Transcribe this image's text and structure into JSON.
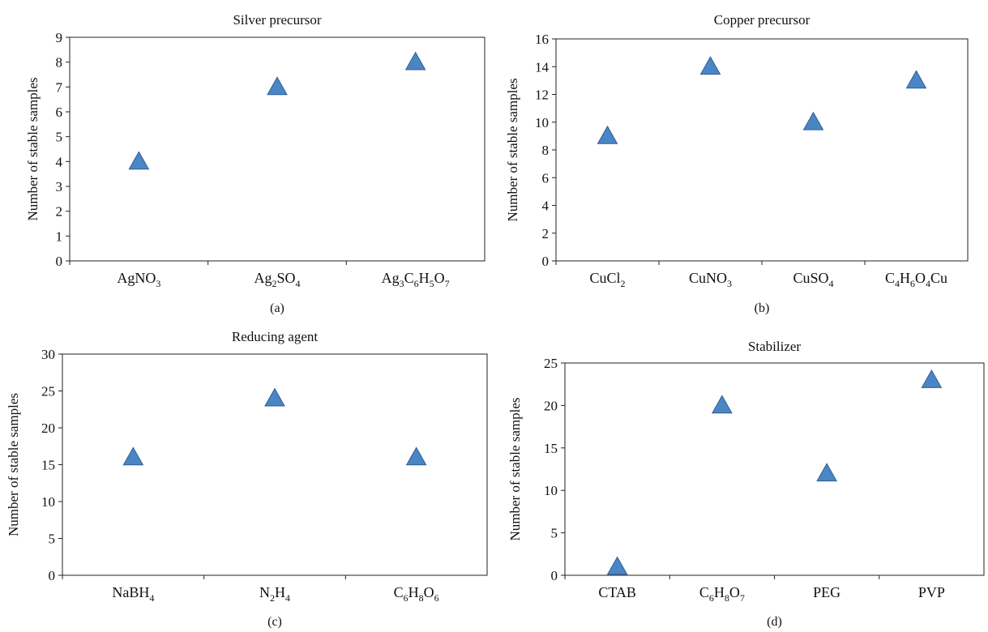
{
  "chart_data": [
    {
      "type": "scatter",
      "title": "Silver precursor",
      "ylabel": "Number of stable samples",
      "xlabel": "",
      "panel_label": "(a)",
      "categories": [
        {
          "base": "AgNO",
          "parts": [
            [
              "AgNO",
              ""
            ],
            [
              "3",
              "sub"
            ]
          ]
        },
        {
          "base": "Ag2SO4",
          "parts": [
            [
              "Ag",
              ""
            ],
            [
              "2",
              "sub"
            ],
            [
              "SO",
              ""
            ],
            [
              "4",
              "sub"
            ]
          ]
        },
        {
          "base": "Ag3C6H5O7",
          "parts": [
            [
              "Ag",
              ""
            ],
            [
              "3",
              "sub"
            ],
            [
              "C",
              ""
            ],
            [
              "6",
              "sub"
            ],
            [
              "H",
              ""
            ],
            [
              "5",
              "sub"
            ],
            [
              "O",
              ""
            ],
            [
              "7",
              "sub"
            ]
          ]
        }
      ],
      "values": [
        4,
        7,
        8
      ],
      "ylim": [
        0,
        9
      ],
      "yticks": [
        0,
        1,
        2,
        3,
        4,
        5,
        6,
        7,
        8,
        9
      ],
      "marker": "triangle",
      "color": "#4a86c5",
      "grid": false
    },
    {
      "type": "scatter",
      "title": "Copper precursor",
      "ylabel": "Number of stable samples",
      "xlabel": "",
      "panel_label": "(b)",
      "categories": [
        {
          "base": "CuCl2",
          "parts": [
            [
              "CuCl",
              ""
            ],
            [
              "2",
              "sub"
            ]
          ]
        },
        {
          "base": "CuNO3",
          "parts": [
            [
              "CuNO",
              ""
            ],
            [
              "3",
              "sub"
            ]
          ]
        },
        {
          "base": "CuSO4",
          "parts": [
            [
              "CuSO",
              ""
            ],
            [
              "4",
              "sub"
            ]
          ]
        },
        {
          "base": "C4H6O4Cu",
          "parts": [
            [
              "C",
              ""
            ],
            [
              "4",
              "sub"
            ],
            [
              "H",
              ""
            ],
            [
              "6",
              "sub"
            ],
            [
              "O",
              ""
            ],
            [
              "4",
              "sub"
            ],
            [
              "Cu",
              ""
            ]
          ]
        }
      ],
      "values": [
        9,
        14,
        10,
        13
      ],
      "ylim": [
        0,
        16
      ],
      "yticks": [
        0,
        2,
        4,
        6,
        8,
        10,
        12,
        14,
        16
      ],
      "marker": "triangle",
      "color": "#4a86c5",
      "grid": false
    },
    {
      "type": "scatter",
      "title": "Reducing agent",
      "ylabel": "Number of stable samples",
      "xlabel": "",
      "panel_label": "(c)",
      "categories": [
        {
          "base": "NaBH4",
          "parts": [
            [
              "NaBH",
              ""
            ],
            [
              "4",
              "sub"
            ]
          ]
        },
        {
          "base": "N2H4",
          "parts": [
            [
              "N",
              ""
            ],
            [
              "2",
              "sub"
            ],
            [
              "H",
              ""
            ],
            [
              "4",
              "sub"
            ]
          ]
        },
        {
          "base": "C6H8O6",
          "parts": [
            [
              "C",
              ""
            ],
            [
              "6",
              "sub"
            ],
            [
              "H",
              ""
            ],
            [
              "8",
              "sub"
            ],
            [
              "O",
              ""
            ],
            [
              "6",
              "sub"
            ]
          ]
        }
      ],
      "values": [
        16,
        24,
        16
      ],
      "ylim": [
        0,
        30
      ],
      "yticks": [
        0,
        5,
        10,
        15,
        20,
        25,
        30
      ],
      "marker": "triangle",
      "color": "#4a86c5",
      "grid": false
    },
    {
      "type": "scatter",
      "title": "Stabilizer",
      "ylabel": "Number of stable samples",
      "xlabel": "",
      "panel_label": "(d)",
      "categories": [
        {
          "base": "CTAB",
          "parts": [
            [
              "CTAB",
              ""
            ]
          ]
        },
        {
          "base": "C6H8O7",
          "parts": [
            [
              "C",
              ""
            ],
            [
              "6",
              "sub"
            ],
            [
              "H",
              ""
            ],
            [
              "8",
              "sub"
            ],
            [
              "O",
              ""
            ],
            [
              "7",
              "sub"
            ]
          ]
        },
        {
          "base": "PEG",
          "parts": [
            [
              "PEG",
              ""
            ]
          ]
        },
        {
          "base": "PVP",
          "parts": [
            [
              "PVP",
              ""
            ]
          ]
        }
      ],
      "values": [
        1,
        20,
        12,
        23
      ],
      "ylim": [
        0,
        25
      ],
      "yticks": [
        0,
        5,
        10,
        15,
        20,
        25
      ],
      "marker": "triangle",
      "color": "#4a86c5",
      "grid": false
    }
  ]
}
